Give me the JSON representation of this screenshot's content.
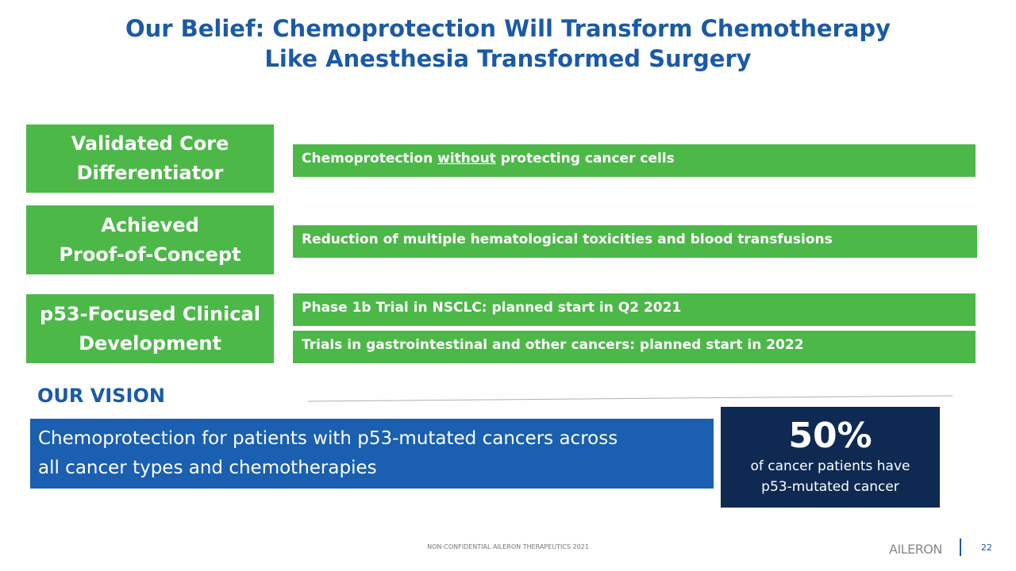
{
  "header": {
    "title": [
      "Our Belief: Chemoprotection Will Transform Chemotherapy",
      "Like Anesthesia Transformed Surgery"
    ]
  },
  "rows": [
    {
      "label": [
        "Validated Core",
        "Differentiator"
      ],
      "items": [
        {
          "before": "Chemoprotection ",
          "underlined": "without",
          "after": " protecting cancer cells"
        }
      ]
    },
    {
      "label": [
        "Achieved",
        "Proof-of-Concept"
      ],
      "items": [
        {
          "before": "Reduction of multiple hematological toxicities and blood transfusions"
        }
      ]
    },
    {
      "label": [
        "p53-Focused Clinical",
        "Development"
      ],
      "items": [
        {
          "before": "Phase 1b Trial in NSCLC: planned start in Q2 2021"
        },
        {
          "before": "Trials in gastrointestinal and other cancers: planned start in 2022"
        }
      ]
    }
  ],
  "vision": {
    "heading": "OUR VISION",
    "text": [
      "Chemoprotection for patients with p53-mutated cancers across",
      "all cancer types and chemotherapies"
    ]
  },
  "stat": {
    "figure": "50%",
    "caption": [
      "of cancer patients have",
      "p53-mutated cancer"
    ]
  },
  "footer": {
    "note": "NON-CONFIDENTIAL AILERON THERAPEUTICS 2021",
    "logo": "AILERON",
    "page": "22"
  }
}
